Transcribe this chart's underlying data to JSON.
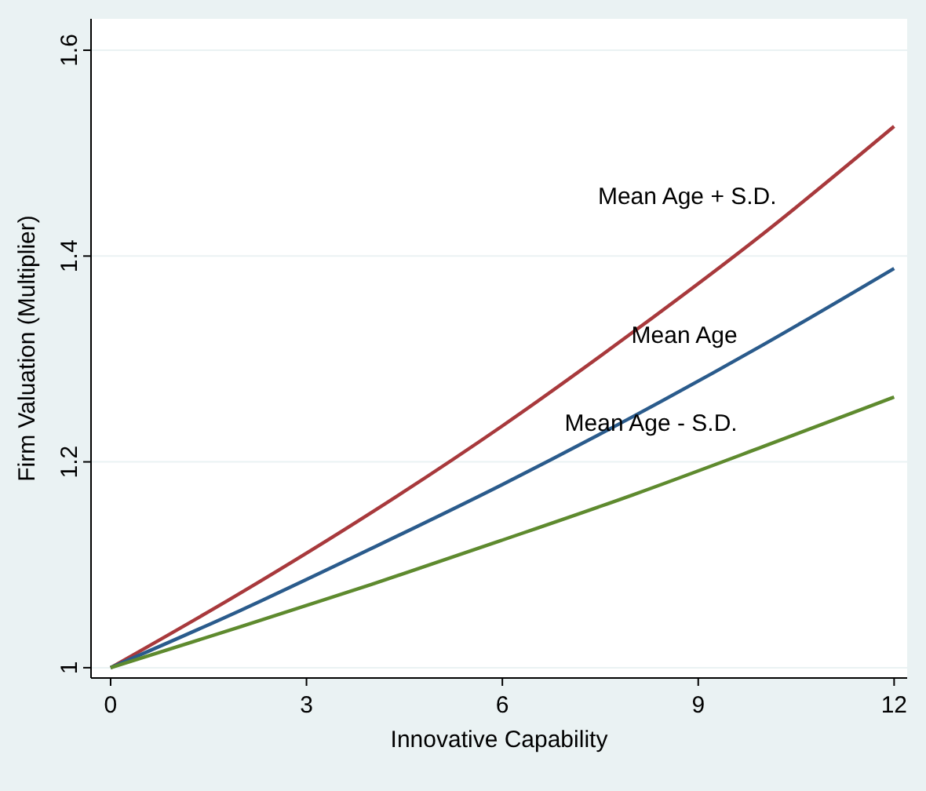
{
  "chart_data": {
    "type": "line",
    "xlabel": "Innovative Capability",
    "ylabel": "Firm Valuation (Multiplier)",
    "x": [
      0,
      2,
      4,
      6,
      8,
      10,
      12
    ],
    "series": [
      {
        "name": "Mean Age + S.D.",
        "color": "#a8393c",
        "values": [
          1,
          1.073,
          1.151,
          1.235,
          1.326,
          1.422,
          1.526
        ]
      },
      {
        "name": "Mean Age",
        "color": "#2a5b8c",
        "values": [
          1,
          1.056,
          1.116,
          1.178,
          1.244,
          1.314,
          1.388
        ]
      },
      {
        "name": "Mean Age - S.D.",
        "color": "#5e8a2e",
        "values": [
          1,
          1.04,
          1.081,
          1.124,
          1.168,
          1.215,
          1.263
        ]
      }
    ],
    "xlim": [
      -0.3,
      12.2
    ],
    "xticks": [
      0,
      3,
      6,
      9,
      12
    ],
    "ylim": [
      0.99,
      1.6
    ],
    "yticks": [
      1,
      1.2,
      1.4,
      1.6
    ],
    "grid": "y"
  }
}
